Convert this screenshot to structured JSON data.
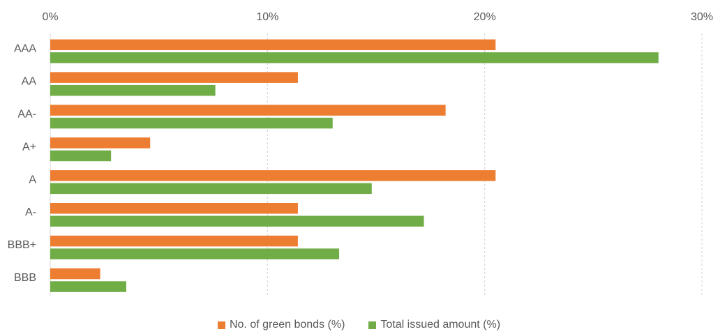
{
  "chart_data": {
    "type": "bar",
    "orientation": "horizontal",
    "categories": [
      "AAA",
      "AA",
      "AA-",
      "A+",
      "A",
      "A-",
      "BBB+",
      "BBB"
    ],
    "series": [
      {
        "name": "No. of green bonds (%)",
        "color": "#ED7D31",
        "values": [
          20.5,
          11.4,
          18.2,
          4.6,
          20.5,
          11.4,
          11.4,
          2.3
        ]
      },
      {
        "name": "Total issued amount (%)",
        "color": "#70AD47",
        "values": [
          28.0,
          7.6,
          13.0,
          2.8,
          14.8,
          17.2,
          13.3,
          3.5
        ]
      }
    ],
    "xlim": [
      0,
      30
    ],
    "x_ticks": [
      "0%",
      "10%",
      "20%",
      "30%"
    ],
    "x_axis_position": "top",
    "grid": "vertical dashed",
    "legend_position": "bottom",
    "title": "",
    "xlabel": "",
    "ylabel": ""
  }
}
